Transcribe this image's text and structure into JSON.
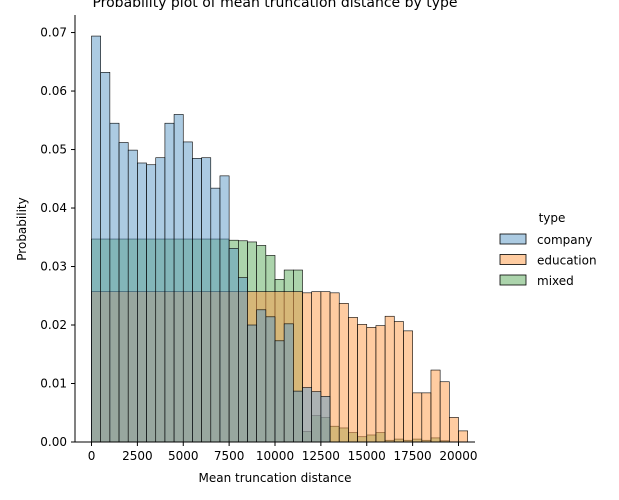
{
  "chart_data": {
    "type": "bar",
    "title": "Probability plot of mean truncation distance by type",
    "xlabel": "Mean truncation distance",
    "ylabel": "Probability",
    "xlim": [
      -900,
      20900
    ],
    "ylim": [
      0,
      0.073
    ],
    "bin_width": 500,
    "xticks": [
      0,
      2500,
      5000,
      7500,
      10000,
      12500,
      15000,
      17500,
      20000
    ],
    "yticks": [
      0.0,
      0.01,
      0.02,
      0.03,
      0.04,
      0.05,
      0.06,
      0.07
    ],
    "xtick_labels": [
      "0",
      "2500",
      "5000",
      "7500",
      "10000",
      "12500",
      "15000",
      "17500",
      "20000"
    ],
    "ytick_labels": [
      "0.00",
      "0.01",
      "0.02",
      "0.03",
      "0.04",
      "0.05",
      "0.06",
      "0.07"
    ],
    "grid": false,
    "legend": {
      "title": "type",
      "position": "right",
      "entries": [
        "company",
        "education",
        "mixed"
      ]
    },
    "series": [
      {
        "name": "mixed",
        "color": "#59a959",
        "bins": [
          {
            "x0": 0,
            "x1": 7500,
            "value": 0.0347
          },
          {
            "x0": 7500,
            "x1": 8000,
            "value": 0.0345
          },
          {
            "x0": 8000,
            "x1": 8500,
            "value": 0.0344
          },
          {
            "x0": 8500,
            "x1": 9000,
            "value": 0.0342
          },
          {
            "x0": 9000,
            "x1": 9500,
            "value": 0.0336
          },
          {
            "x0": 9500,
            "x1": 10000,
            "value": 0.0319
          },
          {
            "x0": 10000,
            "x1": 10500,
            "value": 0.0278
          },
          {
            "x0": 10500,
            "x1": 11000,
            "value": 0.0294
          },
          {
            "x0": 11000,
            "x1": 11500,
            "value": 0.0294
          },
          {
            "x0": 11500,
            "x1": 12000,
            "value": 0.0018
          },
          {
            "x0": 12000,
            "x1": 12500,
            "value": 0.0045
          },
          {
            "x0": 12500,
            "x1": 13000,
            "value": 0.0042
          },
          {
            "x0": 13000,
            "x1": 13500,
            "value": 0.0027
          },
          {
            "x0": 13500,
            "x1": 14000,
            "value": 0.0024
          },
          {
            "x0": 14000,
            "x1": 14500,
            "value": 0.0016
          },
          {
            "x0": 14500,
            "x1": 15000,
            "value": 0.0009
          },
          {
            "x0": 15000,
            "x1": 15500,
            "value": 0.0012
          },
          {
            "x0": 15500,
            "x1": 16000,
            "value": 0.0016
          },
          {
            "x0": 16000,
            "x1": 16500,
            "value": 0.0003
          },
          {
            "x0": 16500,
            "x1": 17000,
            "value": 0.0005
          },
          {
            "x0": 17000,
            "x1": 17500,
            "value": 0.0003
          },
          {
            "x0": 17500,
            "x1": 18000,
            "value": 0.0005
          },
          {
            "x0": 18000,
            "x1": 18500,
            "value": 0.0003
          },
          {
            "x0": 18500,
            "x1": 19000,
            "value": 0.0007
          },
          {
            "x0": 19000,
            "x1": 19500,
            "value": 0.0002
          }
        ]
      },
      {
        "name": "education",
        "color": "#ff9a44",
        "bins": [
          {
            "x0": 0,
            "x1": 11500,
            "value": 0.0257
          },
          {
            "x0": 11500,
            "x1": 12000,
            "value": 0.0255
          },
          {
            "x0": 12000,
            "x1": 12500,
            "value": 0.0257
          },
          {
            "x0": 12500,
            "x1": 13000,
            "value": 0.0257
          },
          {
            "x0": 13000,
            "x1": 13500,
            "value": 0.0255
          },
          {
            "x0": 13500,
            "x1": 14000,
            "value": 0.0237
          },
          {
            "x0": 14000,
            "x1": 14500,
            "value": 0.0213
          },
          {
            "x0": 14500,
            "x1": 15000,
            "value": 0.0201
          },
          {
            "x0": 15000,
            "x1": 15500,
            "value": 0.0196
          },
          {
            "x0": 15500,
            "x1": 16000,
            "value": 0.0199
          },
          {
            "x0": 16000,
            "x1": 16500,
            "value": 0.0215
          },
          {
            "x0": 16500,
            "x1": 17000,
            "value": 0.0206
          },
          {
            "x0": 17000,
            "x1": 17500,
            "value": 0.019
          },
          {
            "x0": 17500,
            "x1": 18000,
            "value": 0.0084
          },
          {
            "x0": 18000,
            "x1": 18500,
            "value": 0.0084
          },
          {
            "x0": 18500,
            "x1": 19000,
            "value": 0.0123
          },
          {
            "x0": 19000,
            "x1": 19500,
            "value": 0.0103
          },
          {
            "x0": 19500,
            "x1": 20000,
            "value": 0.0042
          },
          {
            "x0": 20000,
            "x1": 20500,
            "value": 0.0019
          }
        ]
      },
      {
        "name": "company",
        "color": "#5a97c6",
        "bins": [
          {
            "x0": 0,
            "x1": 500,
            "value": 0.0694
          },
          {
            "x0": 500,
            "x1": 1000,
            "value": 0.0632
          },
          {
            "x0": 1000,
            "x1": 1500,
            "value": 0.0545
          },
          {
            "x0": 1500,
            "x1": 2000,
            "value": 0.0512
          },
          {
            "x0": 2000,
            "x1": 2500,
            "value": 0.0499
          },
          {
            "x0": 2500,
            "x1": 3000,
            "value": 0.0477
          },
          {
            "x0": 3000,
            "x1": 3500,
            "value": 0.0474
          },
          {
            "x0": 3500,
            "x1": 4000,
            "value": 0.0486
          },
          {
            "x0": 4000,
            "x1": 4500,
            "value": 0.0545
          },
          {
            "x0": 4500,
            "x1": 5000,
            "value": 0.056
          },
          {
            "x0": 5000,
            "x1": 5500,
            "value": 0.0513
          },
          {
            "x0": 5500,
            "x1": 6000,
            "value": 0.0485
          },
          {
            "x0": 6000,
            "x1": 6500,
            "value": 0.0486
          },
          {
            "x0": 6500,
            "x1": 7000,
            "value": 0.0434
          },
          {
            "x0": 7000,
            "x1": 7500,
            "value": 0.0455
          },
          {
            "x0": 7500,
            "x1": 8000,
            "value": 0.0331
          },
          {
            "x0": 8000,
            "x1": 8500,
            "value": 0.0281
          },
          {
            "x0": 8500,
            "x1": 9000,
            "value": 0.02
          },
          {
            "x0": 9000,
            "x1": 9500,
            "value": 0.0226
          },
          {
            "x0": 9500,
            "x1": 10000,
            "value": 0.0214
          },
          {
            "x0": 10000,
            "x1": 10500,
            "value": 0.0173
          },
          {
            "x0": 10500,
            "x1": 11000,
            "value": 0.0202
          },
          {
            "x0": 11000,
            "x1": 11500,
            "value": 0.0087
          },
          {
            "x0": 11500,
            "x1": 12000,
            "value": 0.0093
          },
          {
            "x0": 12000,
            "x1": 12500,
            "value": 0.0086
          },
          {
            "x0": 12500,
            "x1": 13000,
            "value": 0.0078
          }
        ]
      }
    ]
  }
}
